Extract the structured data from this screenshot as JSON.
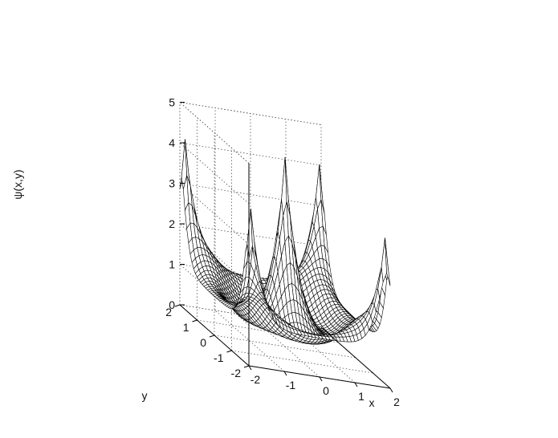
{
  "chart_data": {
    "type": "surface",
    "title": "",
    "xlabel": "x",
    "ylabel": "y",
    "zlabel": "ψ(x,y)",
    "xlim": [
      -2,
      2
    ],
    "ylim": [
      -2,
      2
    ],
    "zlim": [
      0,
      5
    ],
    "x_ticks": [
      "-2",
      "-1",
      "0",
      "1",
      "2"
    ],
    "y_ticks": [
      "-2",
      "-1",
      "0",
      "1",
      "2"
    ],
    "z_ticks": [
      "0",
      "1",
      "2",
      "3",
      "4",
      "5"
    ],
    "grid": true,
    "grid_size": 41,
    "peaks": [
      {
        "x": -1.9,
        "y": -1.9,
        "z": 3.8
      },
      {
        "x": 1.9,
        "y": -1.9,
        "z": 3.6
      },
      {
        "x": -1.9,
        "y": 1.9,
        "z": 4.1
      },
      {
        "x": 1.9,
        "y": 1.9,
        "z": 4.0
      },
      {
        "x": 0.0,
        "y": 0.0,
        "z": 4.8
      }
    ],
    "valley_z": 0.9,
    "edge_z": 0.1,
    "colors": {
      "mesh_face": "#ffffff",
      "mesh_edge": "#000000",
      "grid": "#555555"
    }
  }
}
